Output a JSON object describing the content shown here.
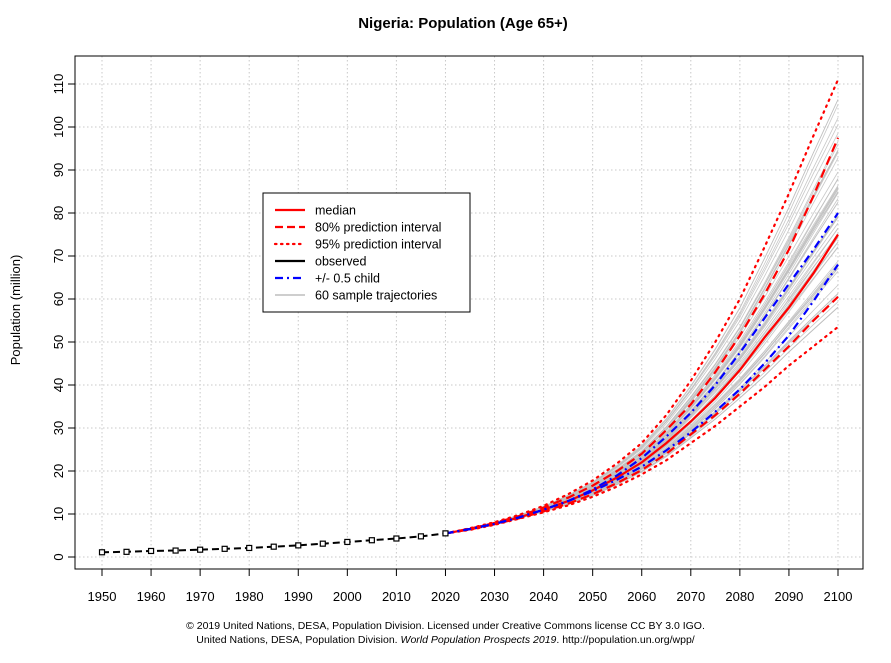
{
  "chart_data": {
    "type": "line",
    "title": "Nigeria: Population (Age 65+)",
    "xlabel": "",
    "ylabel": "Population (million)",
    "xlim": [
      1950,
      2100
    ],
    "ylim": [
      0,
      110
    ],
    "x_ticks": [
      1950,
      1960,
      1970,
      1980,
      1990,
      2000,
      2010,
      2020,
      2030,
      2040,
      2050,
      2060,
      2070,
      2080,
      2090,
      2100
    ],
    "y_ticks": [
      0,
      10,
      20,
      30,
      40,
      50,
      60,
      70,
      80,
      90,
      100,
      110
    ],
    "grid": true,
    "legend_position": "center-left",
    "legend": [
      {
        "label": "median",
        "style": "solid",
        "color": "#ff0000"
      },
      {
        "label": "80% prediction interval",
        "style": "dashed",
        "color": "#ff0000"
      },
      {
        "label": "95% prediction interval",
        "style": "dotted",
        "color": "#ff0000"
      },
      {
        "label": "observed",
        "style": "solid",
        "color": "#000000"
      },
      {
        "label": "+/- 0.5 child",
        "style": "dashdot",
        "color": "#0000ff"
      },
      {
        "label": "60 sample trajectories",
        "style": "solid",
        "color": "#bebebe"
      }
    ],
    "series": [
      {
        "name": "observed",
        "x": [
          1950,
          1955,
          1960,
          1965,
          1970,
          1975,
          1980,
          1985,
          1990,
          1995,
          2000,
          2005,
          2010,
          2015,
          2020
        ],
        "values": [
          1.1,
          1.2,
          1.4,
          1.5,
          1.7,
          1.9,
          2.1,
          2.4,
          2.7,
          3.1,
          3.5,
          3.9,
          4.3,
          4.8,
          5.5
        ]
      },
      {
        "name": "median",
        "x": [
          2020,
          2025,
          2030,
          2035,
          2040,
          2045,
          2050,
          2055,
          2060,
          2065,
          2070,
          2075,
          2080,
          2085,
          2090,
          2095,
          2100
        ],
        "values": [
          5.5,
          6.5,
          7.7,
          9.2,
          11.0,
          13.0,
          15.5,
          18.5,
          22.0,
          26.5,
          31.5,
          37.0,
          43.5,
          51.0,
          58.0,
          66.0,
          75.0
        ]
      },
      {
        "name": "80% prediction interval",
        "lower": [
          5.5,
          6.4,
          7.6,
          9.0,
          10.6,
          12.4,
          14.6,
          17.2,
          20.2,
          24.0,
          28.5,
          33.0,
          38.0,
          43.5,
          49.0,
          55.0,
          60.5
        ],
        "upper": [
          5.5,
          6.6,
          7.9,
          9.5,
          11.5,
          13.8,
          16.6,
          20.0,
          24.0,
          29.5,
          35.5,
          43.0,
          51.5,
          61.0,
          71.5,
          84.0,
          97.5
        ]
      },
      {
        "name": "95% prediction interval",
        "lower": [
          5.5,
          6.3,
          7.5,
          8.9,
          10.4,
          12.0,
          14.0,
          16.4,
          19.2,
          22.5,
          26.5,
          30.5,
          35.0,
          39.5,
          44.5,
          49.0,
          53.5
        ],
        "upper": [
          5.5,
          6.7,
          8.1,
          9.8,
          11.9,
          14.6,
          17.8,
          21.8,
          26.5,
          33.0,
          41.0,
          50.0,
          60.0,
          72.0,
          84.5,
          98.0,
          111.0
        ]
      },
      {
        "name": "+/- 0.5 child",
        "lower": [
          5.5,
          6.5,
          7.7,
          9.2,
          11.0,
          13.0,
          15.3,
          18.0,
          21.0,
          24.8,
          29.0,
          33.8,
          39.0,
          45.0,
          51.5,
          59.5,
          68.0
        ],
        "upper": [
          5.5,
          6.5,
          7.7,
          9.2,
          11.0,
          13.0,
          15.7,
          19.0,
          23.0,
          28.0,
          33.5,
          40.0,
          47.5,
          55.5,
          63.5,
          71.5,
          80.0
        ]
      }
    ]
  },
  "footer": {
    "line1": "© 2019 United Nations, DESA, Population Division. Licensed under Creative Commons license CC BY 3.0 IGO.",
    "line2_prefix": "United Nations, DESA, Population Division. ",
    "line2_italic": "World Population Prospects 2019",
    "line2_suffix": ". http://population.un.org/wpp/"
  }
}
